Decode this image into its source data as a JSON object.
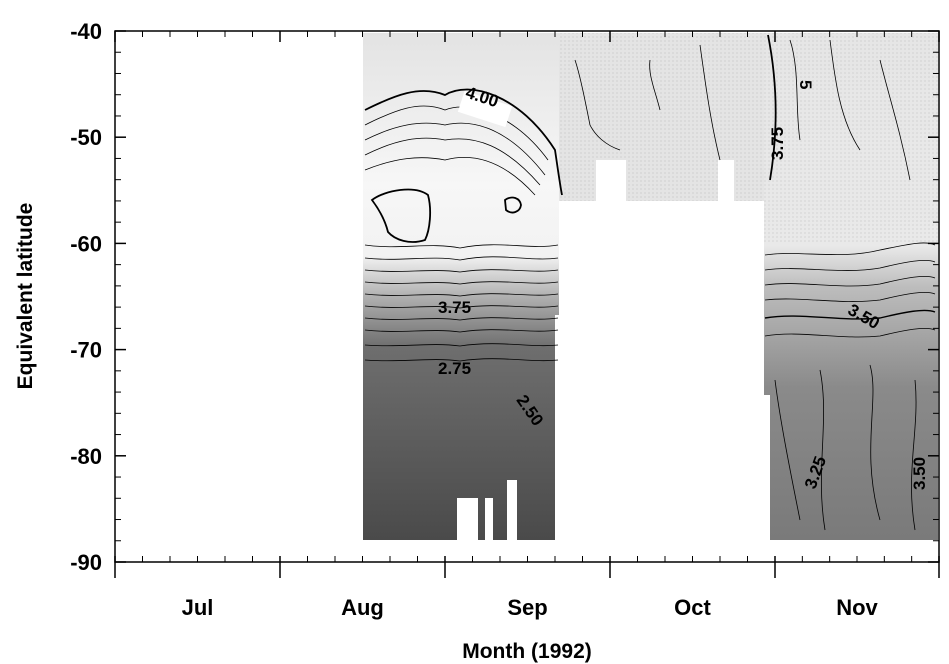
{
  "chart_data": {
    "type": "heatmap",
    "title": "",
    "xlabel": "Month (1992)",
    "ylabel": "Equivalent latitude",
    "x_ticks": [
      "Jul",
      "Aug",
      "Sep",
      "Oct",
      "Nov"
    ],
    "y_ticks": [
      "-40",
      "-50",
      "-60",
      "-70",
      "-80",
      "-90"
    ],
    "ylim": [
      -90,
      -40
    ],
    "contour_labels": [
      "4.00",
      "3.75",
      "5",
      "3.75",
      "3.50",
      "2.75",
      "2.50",
      "3.25",
      "3.50"
    ],
    "data_periods": [
      {
        "start": "Aug",
        "end": "mid-Sep",
        "lat_range": [
          -88,
          -40
        ]
      },
      {
        "start": "mid-Sep",
        "end": "late Oct",
        "lat_range": [
          -56,
          -40
        ]
      },
      {
        "start": "late Oct",
        "end": "end Nov",
        "lat_range": [
          -88,
          -40
        ]
      }
    ],
    "grid": false
  }
}
